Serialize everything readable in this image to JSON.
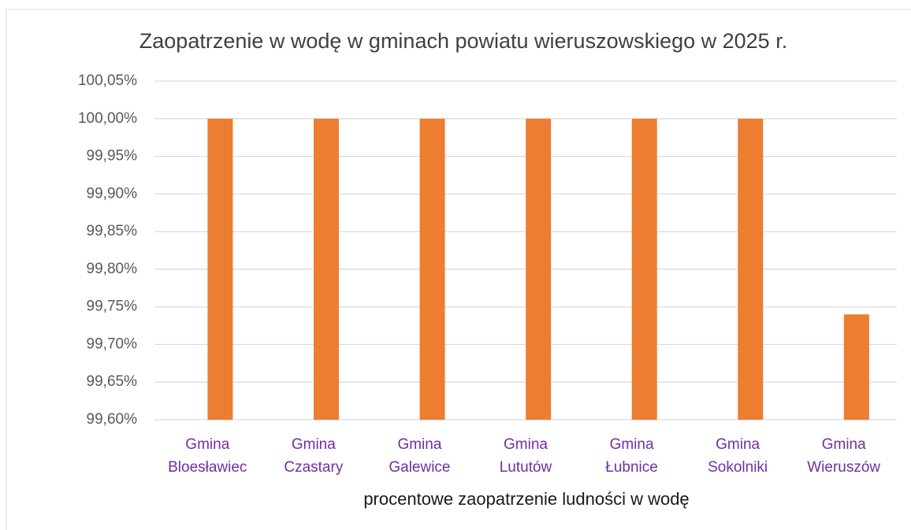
{
  "chart_data": {
    "type": "bar",
    "title": "Zaopatrzenie w wodę w gminach powiatu wieruszowskiego w 2025 r.",
    "x_label": "procentowe zaopatrzenie ludności w wodę",
    "categories": [
      "Gmina Bloesławiec",
      "Gmina Czastary",
      "Gmina Galewice",
      "Gmina Lututów",
      "Gmina Łubnice",
      "Gmina Sokolniki",
      "Gmina Wieruszów"
    ],
    "values": [
      100,
      100,
      100,
      100,
      100,
      100,
      99.74
    ],
    "color": "#ed7d31",
    "ylim": [
      99.6,
      100.05
    ],
    "yticks": [
      {
        "value": 99.6,
        "label": "99,60%"
      },
      {
        "value": 99.65,
        "label": "99,65%"
      },
      {
        "value": 99.7,
        "label": "99,70%"
      },
      {
        "value": 99.75,
        "label": "99,75%"
      },
      {
        "value": 99.8,
        "label": "99,80%"
      },
      {
        "value": 99.85,
        "label": "99,85%"
      },
      {
        "value": 99.9,
        "label": "99,90%"
      },
      {
        "value": 99.95,
        "label": "99,95%"
      },
      {
        "value": 100,
        "label": "100,00%"
      },
      {
        "value": 100.05,
        "label": "100,05%"
      }
    ],
    "grid": true
  }
}
